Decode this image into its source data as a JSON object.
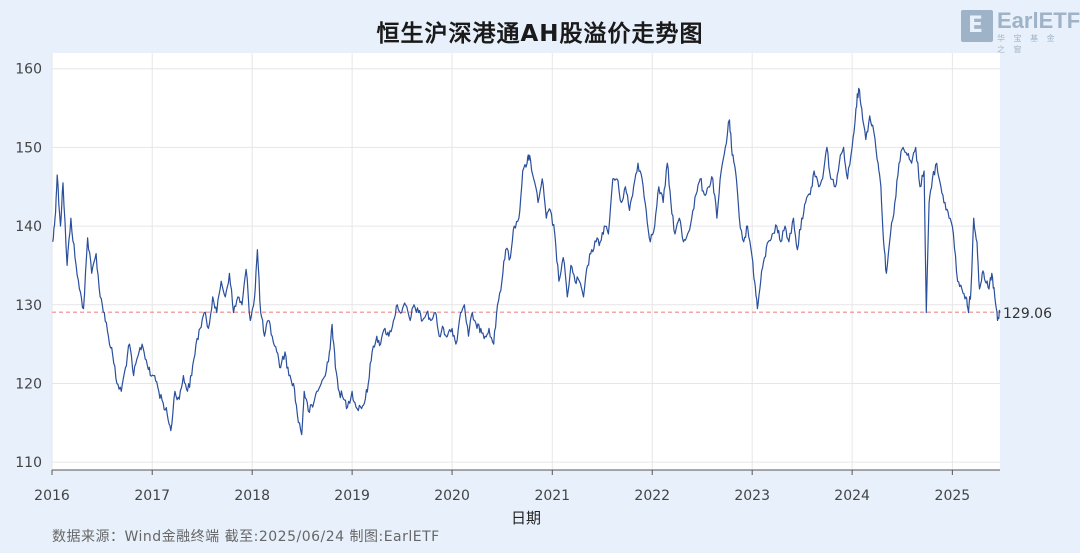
{
  "chart_data": {
    "type": "line",
    "title": "恒生沪深港通AH股溢价走势图",
    "xlabel": "日期",
    "ylabel": "",
    "x_ticks": [
      "2016",
      "2017",
      "2018",
      "2019",
      "2020",
      "2021",
      "2022",
      "2023",
      "2024",
      "2025"
    ],
    "x_range": [
      "2016-01-01",
      "2025-06-24"
    ],
    "y_ticks": [
      110,
      120,
      130,
      140,
      150,
      160
    ],
    "ylim": [
      109,
      162
    ],
    "grid": true,
    "series": [
      {
        "color": "#2a4f9c",
        "points": [
          [
            "2016-01-04",
            138
          ],
          [
            "2016-01-12",
            141
          ],
          [
            "2016-01-20",
            146.5
          ],
          [
            "2016-02-01",
            140
          ],
          [
            "2016-02-10",
            145.5
          ],
          [
            "2016-02-25",
            135
          ],
          [
            "2016-03-10",
            141
          ],
          [
            "2016-03-25",
            136
          ],
          [
            "2016-04-10",
            132
          ],
          [
            "2016-04-25",
            129.5
          ],
          [
            "2016-05-10",
            138.5
          ],
          [
            "2016-05-25",
            134
          ],
          [
            "2016-06-10",
            136.5
          ],
          [
            "2016-06-25",
            131
          ],
          [
            "2016-07-10",
            129
          ],
          [
            "2016-07-25",
            126
          ],
          [
            "2016-08-10",
            123.5
          ],
          [
            "2016-08-25",
            120
          ],
          [
            "2016-09-10",
            119
          ],
          [
            "2016-09-25",
            122
          ],
          [
            "2016-10-10",
            125
          ],
          [
            "2016-10-25",
            121
          ],
          [
            "2016-11-10",
            123.5
          ],
          [
            "2016-11-25",
            125
          ],
          [
            "2016-12-10",
            123
          ],
          [
            "2016-12-25",
            121
          ],
          [
            "2017-01-10",
            121
          ],
          [
            "2017-01-25",
            119
          ],
          [
            "2017-02-10",
            117.5
          ],
          [
            "2017-02-25",
            116
          ],
          [
            "2017-03-10",
            114
          ],
          [
            "2017-03-25",
            119
          ],
          [
            "2017-04-10",
            118
          ],
          [
            "2017-04-25",
            121
          ],
          [
            "2017-05-10",
            119
          ],
          [
            "2017-05-25",
            121
          ],
          [
            "2017-06-10",
            125
          ],
          [
            "2017-06-25",
            127
          ],
          [
            "2017-07-10",
            129
          ],
          [
            "2017-07-25",
            127
          ],
          [
            "2017-08-10",
            131
          ],
          [
            "2017-08-25",
            129
          ],
          [
            "2017-09-10",
            133
          ],
          [
            "2017-09-25",
            131
          ],
          [
            "2017-10-10",
            134
          ],
          [
            "2017-10-25",
            129
          ],
          [
            "2017-11-10",
            131
          ],
          [
            "2017-11-25",
            130
          ],
          [
            "2017-12-10",
            134.5
          ],
          [
            "2017-12-25",
            128
          ],
          [
            "2018-01-10",
            131
          ],
          [
            "2018-01-20",
            137
          ],
          [
            "2018-02-01",
            129
          ],
          [
            "2018-02-15",
            126
          ],
          [
            "2018-03-01",
            128
          ],
          [
            "2018-03-15",
            126
          ],
          [
            "2018-04-01",
            124
          ],
          [
            "2018-04-15",
            122
          ],
          [
            "2018-05-01",
            124
          ],
          [
            "2018-05-15",
            121
          ],
          [
            "2018-06-01",
            120
          ],
          [
            "2018-06-15",
            116
          ],
          [
            "2018-07-01",
            113.5
          ],
          [
            "2018-07-10",
            119
          ],
          [
            "2018-07-25",
            116.5
          ],
          [
            "2018-08-10",
            117
          ],
          [
            "2018-08-25",
            119
          ],
          [
            "2018-09-10",
            120
          ],
          [
            "2018-09-25",
            121
          ],
          [
            "2018-10-10",
            124
          ],
          [
            "2018-10-20",
            127.5
          ],
          [
            "2018-11-01",
            122
          ],
          [
            "2018-11-15",
            119
          ],
          [
            "2018-12-01",
            118
          ],
          [
            "2018-12-15",
            117
          ],
          [
            "2019-01-01",
            119
          ],
          [
            "2019-01-15",
            117
          ],
          [
            "2019-02-01",
            117
          ],
          [
            "2019-02-15",
            117.5
          ],
          [
            "2019-03-01",
            120
          ],
          [
            "2019-03-15",
            124
          ],
          [
            "2019-04-01",
            126
          ],
          [
            "2019-04-15",
            125
          ],
          [
            "2019-05-01",
            127
          ],
          [
            "2019-05-15",
            126
          ],
          [
            "2019-06-01",
            128
          ],
          [
            "2019-06-15",
            130
          ],
          [
            "2019-07-01",
            129
          ],
          [
            "2019-07-15",
            130
          ],
          [
            "2019-08-01",
            128
          ],
          [
            "2019-08-15",
            130
          ],
          [
            "2019-09-01",
            129
          ],
          [
            "2019-09-15",
            128
          ],
          [
            "2019-10-01",
            129
          ],
          [
            "2019-10-15",
            128
          ],
          [
            "2019-11-01",
            129
          ],
          [
            "2019-11-15",
            126
          ],
          [
            "2019-12-01",
            127
          ],
          [
            "2019-12-15",
            126
          ],
          [
            "2020-01-01",
            127
          ],
          [
            "2020-01-15",
            125
          ],
          [
            "2020-02-01",
            129
          ],
          [
            "2020-02-15",
            130
          ],
          [
            "2020-03-01",
            126
          ],
          [
            "2020-03-15",
            129
          ],
          [
            "2020-04-01",
            127
          ],
          [
            "2020-04-15",
            127
          ],
          [
            "2020-05-01",
            126
          ],
          [
            "2020-05-15",
            127
          ],
          [
            "2020-06-01",
            125
          ],
          [
            "2020-06-15",
            130
          ],
          [
            "2020-07-01",
            133
          ],
          [
            "2020-07-15",
            137
          ],
          [
            "2020-08-01",
            136
          ],
          [
            "2020-08-15",
            140
          ],
          [
            "2020-09-01",
            141
          ],
          [
            "2020-09-15",
            147
          ],
          [
            "2020-10-01",
            148
          ],
          [
            "2020-10-10",
            149
          ],
          [
            "2020-10-25",
            146
          ],
          [
            "2020-11-10",
            143
          ],
          [
            "2020-11-25",
            146
          ],
          [
            "2020-12-10",
            141
          ],
          [
            "2020-12-25",
            142
          ],
          [
            "2021-01-10",
            139
          ],
          [
            "2021-01-25",
            133
          ],
          [
            "2021-02-10",
            136
          ],
          [
            "2021-02-25",
            131
          ],
          [
            "2021-03-10",
            135
          ],
          [
            "2021-03-25",
            133
          ],
          [
            "2021-04-10",
            133
          ],
          [
            "2021-04-25",
            131
          ],
          [
            "2021-05-10",
            135
          ],
          [
            "2021-05-25",
            137
          ],
          [
            "2021-06-10",
            138
          ],
          [
            "2021-06-25",
            138
          ],
          [
            "2021-07-10",
            140
          ],
          [
            "2021-07-25",
            139
          ],
          [
            "2021-08-10",
            146
          ],
          [
            "2021-08-25",
            146
          ],
          [
            "2021-09-10",
            143
          ],
          [
            "2021-09-25",
            145
          ],
          [
            "2021-10-10",
            142
          ],
          [
            "2021-10-25",
            145
          ],
          [
            "2021-11-10",
            148
          ],
          [
            "2021-11-25",
            146
          ],
          [
            "2021-12-10",
            142
          ],
          [
            "2021-12-25",
            138
          ],
          [
            "2022-01-10",
            140
          ],
          [
            "2022-01-25",
            145
          ],
          [
            "2022-02-10",
            143
          ],
          [
            "2022-02-25",
            148
          ],
          [
            "2022-03-10",
            143
          ],
          [
            "2022-03-25",
            139
          ],
          [
            "2022-04-10",
            141
          ],
          [
            "2022-04-25",
            138
          ],
          [
            "2022-05-10",
            139
          ],
          [
            "2022-05-25",
            141
          ],
          [
            "2022-06-10",
            144
          ],
          [
            "2022-06-25",
            146
          ],
          [
            "2022-07-10",
            144
          ],
          [
            "2022-07-25",
            145
          ],
          [
            "2022-08-10",
            146
          ],
          [
            "2022-08-25",
            141
          ],
          [
            "2022-09-10",
            147
          ],
          [
            "2022-09-25",
            150
          ],
          [
            "2022-10-10",
            153.5
          ],
          [
            "2022-10-20",
            149
          ],
          [
            "2022-11-01",
            147
          ],
          [
            "2022-11-15",
            141
          ],
          [
            "2022-12-01",
            138
          ],
          [
            "2022-12-15",
            140
          ],
          [
            "2023-01-01",
            136
          ],
          [
            "2023-01-10",
            133
          ],
          [
            "2023-01-20",
            129.5
          ],
          [
            "2023-02-01",
            133
          ],
          [
            "2023-02-15",
            136
          ],
          [
            "2023-03-01",
            138
          ],
          [
            "2023-03-15",
            139
          ],
          [
            "2023-04-01",
            140
          ],
          [
            "2023-04-15",
            138
          ],
          [
            "2023-05-01",
            140
          ],
          [
            "2023-05-15",
            138
          ],
          [
            "2023-06-01",
            141
          ],
          [
            "2023-06-15",
            137
          ],
          [
            "2023-07-01",
            141
          ],
          [
            "2023-07-15",
            143
          ],
          [
            "2023-08-01",
            144
          ],
          [
            "2023-08-15",
            147
          ],
          [
            "2023-09-01",
            145
          ],
          [
            "2023-09-15",
            146
          ],
          [
            "2023-10-01",
            150
          ],
          [
            "2023-10-15",
            146
          ],
          [
            "2023-11-01",
            145
          ],
          [
            "2023-11-15",
            148
          ],
          [
            "2023-12-01",
            150
          ],
          [
            "2023-12-15",
            146
          ],
          [
            "2024-01-01",
            150
          ],
          [
            "2024-01-15",
            155
          ],
          [
            "2024-01-25",
            157.5
          ],
          [
            "2024-02-05",
            155
          ],
          [
            "2024-02-20",
            151
          ],
          [
            "2024-03-05",
            154
          ],
          [
            "2024-03-20",
            152
          ],
          [
            "2024-04-05",
            148
          ],
          [
            "2024-04-15",
            145
          ],
          [
            "2024-04-25",
            138
          ],
          [
            "2024-05-05",
            134
          ],
          [
            "2024-05-20",
            139
          ],
          [
            "2024-06-05",
            143
          ],
          [
            "2024-06-20",
            148
          ],
          [
            "2024-07-05",
            150
          ],
          [
            "2024-07-20",
            149
          ],
          [
            "2024-08-05",
            148
          ],
          [
            "2024-08-20",
            150
          ],
          [
            "2024-09-05",
            145
          ],
          [
            "2024-09-20",
            147
          ],
          [
            "2024-09-28",
            129
          ],
          [
            "2024-10-08",
            143
          ],
          [
            "2024-10-20",
            146
          ],
          [
            "2024-11-05",
            148
          ],
          [
            "2024-11-20",
            145
          ],
          [
            "2024-12-05",
            143
          ],
          [
            "2024-12-20",
            141
          ],
          [
            "2025-01-05",
            139
          ],
          [
            "2025-01-20",
            133
          ],
          [
            "2025-02-05",
            132
          ],
          [
            "2025-02-20",
            131
          ],
          [
            "2025-03-01",
            129
          ],
          [
            "2025-03-10",
            132
          ],
          [
            "2025-03-20",
            141
          ],
          [
            "2025-04-01",
            138
          ],
          [
            "2025-04-10",
            132
          ],
          [
            "2025-04-20",
            134
          ],
          [
            "2025-05-01",
            133
          ],
          [
            "2025-05-15",
            132
          ],
          [
            "2025-05-25",
            134
          ],
          [
            "2025-06-05",
            131
          ],
          [
            "2025-06-15",
            128
          ],
          [
            "2025-06-24",
            129
          ]
        ]
      }
    ],
    "annotations": [
      {
        "type": "hline",
        "y": 129.06,
        "color": "#f08a8a",
        "style": "dashed",
        "label": "129.06"
      }
    ]
  },
  "logo": {
    "mark": "E",
    "text": "EarlETF",
    "sub": "华 宝 基 金 之 窗"
  },
  "source_note": "数据来源：Wind金融终端 截至:2025/06/24 制图:EarlETF"
}
